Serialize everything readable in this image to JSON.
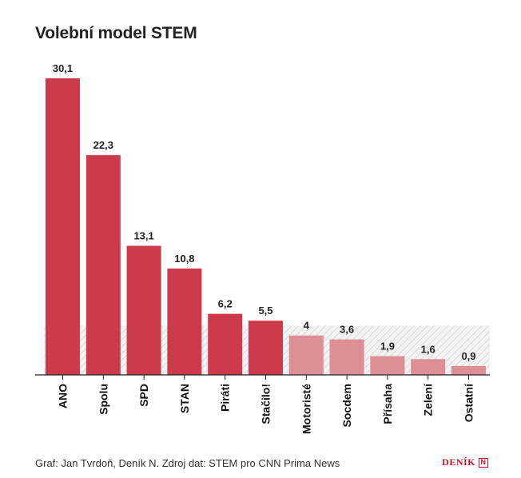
{
  "chart_data": {
    "type": "bar",
    "title": "Volební model STEM",
    "categories": [
      "ANO",
      "Spolu",
      "SPD",
      "STAN",
      "Piráti",
      "Stačilo!",
      "Motoristé",
      "Socdem",
      "Přísaha",
      "Zelení",
      "Ostatní"
    ],
    "values": [
      30.1,
      22.3,
      13.1,
      10.8,
      6.2,
      5.5,
      4,
      3.6,
      1.9,
      1.6,
      0.9
    ],
    "value_labels": [
      "30,1",
      "22,3",
      "13,1",
      "10,8",
      "6,2",
      "5,5",
      "4",
      "3,6",
      "1,9",
      "1,6",
      "0,9"
    ],
    "threshold": 5,
    "ylim": [
      0,
      30.1
    ],
    "grid": false,
    "xlabel": "",
    "ylabel": "",
    "colors": {
      "above_threshold": "#cc3a4b",
      "below_threshold": "#de8f95",
      "threshold_band": "#d0d0d0",
      "axis": "#222222"
    }
  },
  "footer": {
    "credit": "Graf: Jan Tvrdoň, Deník N. Zdroj dat: STEM pro CNN Prima News",
    "brand": "DENÍK",
    "brand_mark": "N"
  }
}
